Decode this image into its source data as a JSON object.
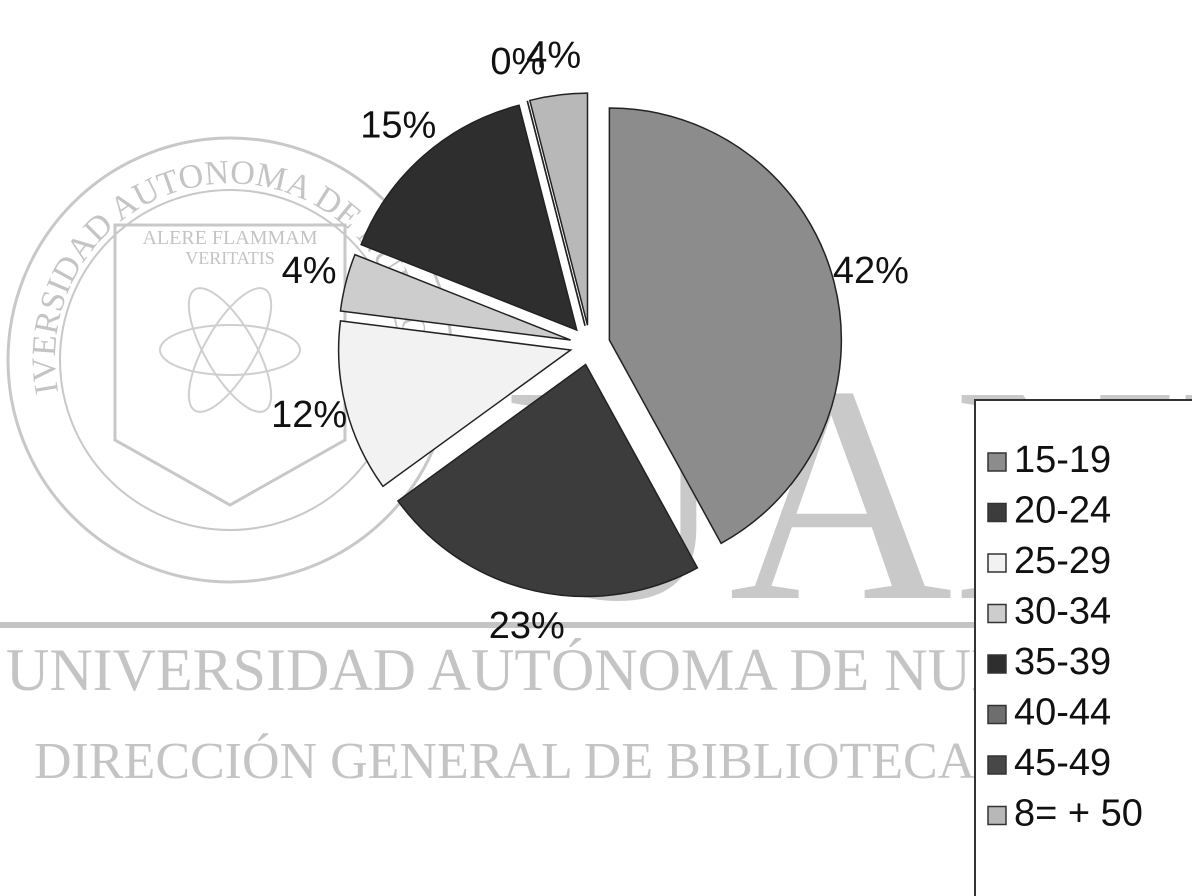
{
  "chart_data": {
    "type": "pie",
    "categories": [
      "15-19",
      "20-24",
      "25-29",
      "30-34",
      "35-39",
      "40-44",
      "45-49",
      "8= + 50"
    ],
    "values": [
      42,
      23,
      12,
      4,
      15,
      0,
      0,
      4
    ],
    "value_labels": [
      "42%",
      "23%",
      "12%",
      "4%",
      "15%",
      "0%",
      null,
      "4%"
    ],
    "colors": [
      "#8c8c8c",
      "#3c3c3c",
      "#f2f2f2",
      "#cdcdcd",
      "#2e2e2e",
      "#6e6e6e",
      "#474747",
      "#b8b8b8"
    ],
    "legend": "right"
  },
  "watermark": {
    "logo": "UANL",
    "line1": "UNIVERSIDAD AUTÓNOMA DE NUEVO LEÓN",
    "line2": "DIRECCIÓN GENERAL DE BIBLIOTECAS",
    "seal_ring": "UNIVERSIDAD AUTONOMA DE NUEVO LEON",
    "motto1": "ALERE FLAMMAM",
    "motto2": "VERITATIS"
  }
}
